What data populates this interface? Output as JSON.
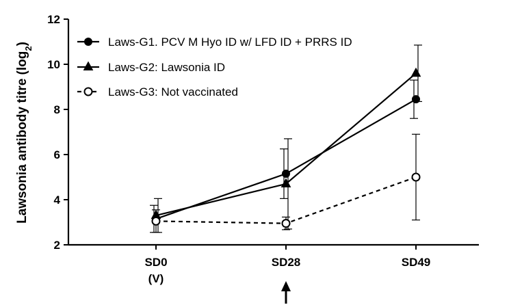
{
  "chart_data": {
    "type": "line",
    "title": "",
    "xlabel": "",
    "ylabel": "Lawsonia antibody titre (log",
    "ylabel_subscript": "2",
    "ylabel_suffix": ")",
    "ylim": [
      2,
      12
    ],
    "yticks": [
      2,
      4,
      6,
      8,
      10,
      12
    ],
    "categories": [
      "SD0",
      "SD28",
      "SD49"
    ],
    "category_sublabels": [
      "(V)",
      "",
      ""
    ],
    "arrow_marker_category": "SD28",
    "grid": false,
    "legend_position": "top-left",
    "series": [
      {
        "name": "Laws-G1. PCV M Hyo ID w/ LFD ID + PRRS ID",
        "marker": "filled-circle",
        "line_style": "solid",
        "values": [
          3.15,
          5.15,
          8.45
        ],
        "error": [
          0.6,
          1.1,
          0.85
        ]
      },
      {
        "name": "Laws-G2: Lawsonia ID",
        "marker": "filled-triangle",
        "line_style": "solid",
        "values": [
          3.3,
          4.7,
          9.6
        ],
        "error": [
          0.75,
          2.0,
          1.25
        ]
      },
      {
        "name": "Laws-G3: Not vaccinated",
        "marker": "open-circle",
        "line_style": "dashed",
        "values": [
          3.05,
          2.95,
          5.0
        ],
        "error": [
          0.5,
          0.28,
          1.9
        ]
      }
    ]
  }
}
